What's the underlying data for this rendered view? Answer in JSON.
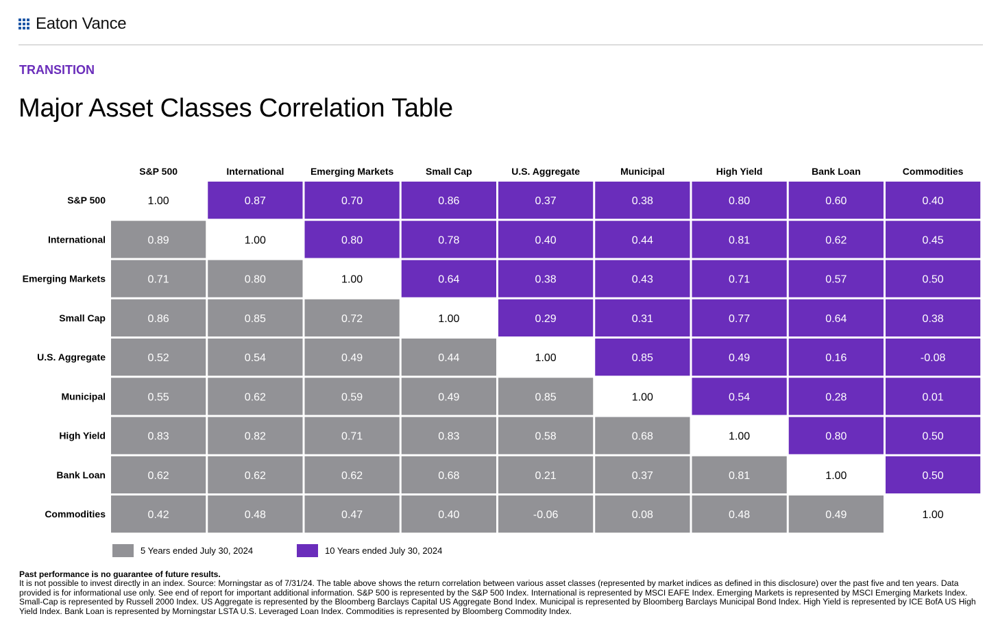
{
  "brand": {
    "name": "Eaton Vance"
  },
  "eyebrow": "TRANSITION",
  "title": "Major Asset Classes Correlation Table",
  "colors": {
    "five_year": "#929296",
    "ten_year": "#6a2dbb",
    "diagonal": "#ffffff",
    "brand_blue": "#1f57a6"
  },
  "chart_data": {
    "type": "heatmap",
    "title": "Major Asset Classes Correlation Table",
    "columns": [
      "S&P 500",
      "International",
      "Emerging Markets",
      "Small Cap",
      "U.S. Aggregate",
      "Municipal",
      "High Yield",
      "Bank Loan",
      "Commodities"
    ],
    "rows": [
      "S&P 500",
      "International",
      "Emerging Markets",
      "Small Cap",
      "U.S. Aggregate",
      "Municipal",
      "High Yield",
      "Bank Loan",
      "Commodities"
    ],
    "values": [
      [
        "1.00",
        "0.87",
        "0.70",
        "0.86",
        "0.37",
        "0.38",
        "0.80",
        "0.60",
        "0.40"
      ],
      [
        "0.89",
        "1.00",
        "0.80",
        "0.78",
        "0.40",
        "0.44",
        "0.81",
        "0.62",
        "0.45"
      ],
      [
        "0.71",
        "0.80",
        "1.00",
        "0.64",
        "0.38",
        "0.43",
        "0.71",
        "0.57",
        "0.50"
      ],
      [
        "0.86",
        "0.85",
        "0.72",
        "1.00",
        "0.29",
        "0.31",
        "0.77",
        "0.64",
        "0.38"
      ],
      [
        "0.52",
        "0.54",
        "0.49",
        "0.44",
        "1.00",
        "0.85",
        "0.49",
        "0.16",
        "-0.08"
      ],
      [
        "0.55",
        "0.62",
        "0.59",
        "0.49",
        "0.85",
        "1.00",
        "0.54",
        "0.28",
        "0.01"
      ],
      [
        "0.83",
        "0.82",
        "0.71",
        "0.83",
        "0.58",
        "0.68",
        "1.00",
        "0.80",
        "0.50"
      ],
      [
        "0.62",
        "0.62",
        "0.62",
        "0.68",
        "0.21",
        "0.37",
        "0.81",
        "1.00",
        "0.50"
      ],
      [
        "0.42",
        "0.48",
        "0.47",
        "0.40",
        "-0.06",
        "0.08",
        "0.48",
        "0.49",
        "1.00"
      ]
    ],
    "upper_triangle": "10 Years ended July 30, 2024",
    "lower_triangle": "5 Years ended July 30, 2024"
  },
  "legend": [
    {
      "label": "5 Years ended July 30, 2024",
      "color": "#929296"
    },
    {
      "label": "10 Years ended July 30, 2024",
      "color": "#6a2dbb"
    }
  ],
  "footnote": {
    "bold": "Past performance is no guarantee of future results.",
    "body": "It is not possible to invest directly in an index. Source: Morningstar as of 7/31/24. The table above shows the return correlation between various asset classes (represented by market indices as defined in this disclosure) over the past five and ten years. Data provided is for informational use only. See end of report for important additional information. S&P 500 is represented by the S&P 500 Index. International is represented by MSCI EAFE Index. Emerging Markets is represented by MSCI Emerging Markets Index. Small-Cap is represented by Russell 2000 Index. US Aggregate is represented by the Bloomberg Barclays Capital US Aggregate Bond Index. Municipal is represented by Bloomberg Barclays Municipal Bond Index. High Yield is represented by ICE BofA US High Yield Index. Bank Loan is represented by Morningstar LSTA U.S. Leveraged Loan Index. Commodities is represented by Bloomberg Commodity Index."
  }
}
